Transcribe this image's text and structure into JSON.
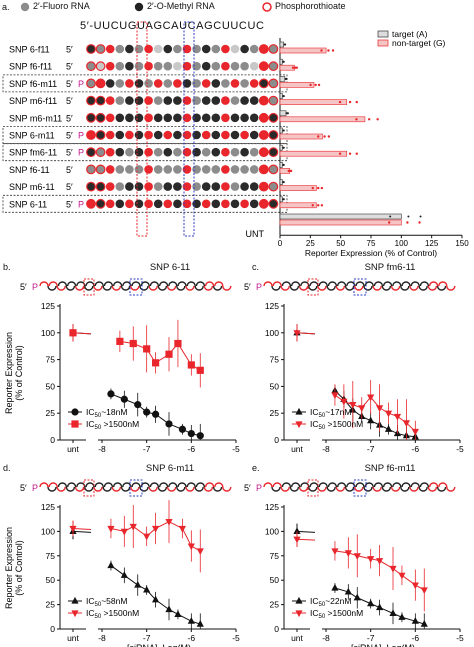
{
  "legend_top": {
    "fluoro": "2′-Fluoro RNA",
    "methyl": "2′-O-Methyl RNA",
    "phosphorothioate": "Phosphorothioate"
  },
  "colors": {
    "red": "#e8262b",
    "pink": "#f5c4c4",
    "dark": "#2a2a2a",
    "gray": "#8c8c8c",
    "blue": "#2e3dbf"
  },
  "panel_a": {
    "letter": "a.",
    "sequence": "5′-UUCUGUAGCAUCAGCUUCUC",
    "rows": [
      {
        "label": "SNP 6-f11",
        "pre": "5′",
        "boxed": false
      },
      {
        "label": "SNP f6-f11",
        "pre": "5′",
        "boxed": false
      },
      {
        "label": "SNP f6-m11",
        "pre": "5′ P",
        "boxed": true
      },
      {
        "label": "SNP m6-f11",
        "pre": "5′",
        "boxed": false
      },
      {
        "label": "SNP m6-m11",
        "pre": "5′",
        "boxed": false
      },
      {
        "label": "SNP 6-m11",
        "pre": "5′ P",
        "boxed": true
      },
      {
        "label": "SNP fm6-11",
        "pre": "5′ P",
        "boxed": true
      },
      {
        "label": "SNP f6-11",
        "pre": "5′",
        "boxed": false
      },
      {
        "label": "SNP m6-11",
        "pre": "5′",
        "boxed": false
      },
      {
        "label": "SNP 6-11",
        "pre": "5′ P",
        "boxed": true
      },
      {
        "label": "UNT",
        "pre": "",
        "boxed": false
      }
    ],
    "chart_data": {
      "type": "bar",
      "orientation": "horizontal",
      "categories": [
        "SNP 6-f11",
        "SNP f6-f11",
        "SNP f6-m11",
        "SNP m6-f11",
        "SNP m6-m11",
        "SNP 6-m11",
        "SNP fm6-11",
        "SNP f6-11",
        "SNP m6-11",
        "SNP 6-11",
        "UNT"
      ],
      "series": [
        {
          "name": "target (A)",
          "values": [
            3,
            2,
            4,
            2,
            5,
            2,
            2,
            2,
            2,
            2,
            100
          ]
        },
        {
          "name": "non-target (G)",
          "values": [
            38,
            12,
            28,
            55,
            70,
            35,
            55,
            8,
            30,
            30,
            100
          ]
        }
      ],
      "xlabel": "Reporter Expression (% of Control)",
      "xticks": [
        "0",
        "25",
        "50",
        "75",
        "100",
        "125",
        "150"
      ],
      "xlim": [
        0,
        150
      ],
      "legend_position": "top-right"
    }
  },
  "panels": [
    {
      "letter": "b.",
      "title": "SNP 6-11",
      "chart_data": {
        "type": "scatter",
        "xlabel": "",
        "ylabel": "Reporter Expression\n(% of Control)",
        "xticks": [
          "-8",
          "-7",
          "-6",
          "-5"
        ],
        "yticks": [
          "0",
          "25",
          "50",
          "75",
          "100",
          "125"
        ],
        "xlim": [
          -8,
          -5
        ],
        "ylim": [
          0,
          125
        ],
        "unt_label": "unt",
        "series": [
          {
            "name": "IC50~18nM",
            "color": "dark",
            "marker": "circle",
            "unt": 100,
            "x": [
              -7.8,
              -7.5,
              -7.2,
              -7.0,
              -6.8,
              -6.5,
              -6.2,
              -6.0,
              -5.8
            ],
            "y": [
              43,
              38,
              33,
              26,
              24,
              15,
              10,
              6,
              4
            ]
          },
          {
            "name": "IC50>1500nM",
            "color": "red",
            "marker": "square",
            "unt": 100,
            "x": [
              -7.6,
              -7.3,
              -7.0,
              -6.8,
              -6.5,
              -6.3,
              -6.0,
              -5.8
            ],
            "y": [
              92,
              90,
              85,
              72,
              80,
              90,
              70,
              65
            ]
          }
        ],
        "legend": [
          {
            "prefix": "IC",
            "sub": "50",
            "suffix": "~18nM"
          },
          {
            "prefix": "IC",
            "sub": "50",
            "suffix": " >1500nM"
          }
        ]
      }
    },
    {
      "letter": "c.",
      "title": "SNP fm6-11",
      "chart_data": {
        "type": "scatter",
        "xlabel": "",
        "ylabel": "",
        "xticks": [
          "-8",
          "-7",
          "-6",
          "-5"
        ],
        "yticks": [
          "0",
          "25",
          "50",
          "75",
          "100",
          "125"
        ],
        "xlim": [
          -8,
          -5
        ],
        "ylim": [
          0,
          125
        ],
        "unt_label": "unt",
        "series": [
          {
            "name": "IC50~17nM",
            "color": "dark",
            "marker": "triangle-up",
            "unt": 100,
            "x": [
              -7.8,
              -7.6,
              -7.4,
              -7.2,
              -7.0,
              -6.8,
              -6.6,
              -6.4,
              -6.2,
              -6.0
            ],
            "y": [
              46,
              38,
              28,
              22,
              18,
              14,
              10,
              6,
              4,
              3
            ]
          },
          {
            "name": "IC50>1500nM",
            "color": "red",
            "marker": "triangle-down",
            "unt": 100,
            "x": [
              -7.8,
              -7.6,
              -7.4,
              -7.2,
              -7.0,
              -6.8,
              -6.6,
              -6.4,
              -6.2,
              -6.0
            ],
            "y": [
              42,
              36,
              33,
              30,
              40,
              30,
              25,
              22,
              16,
              8
            ]
          }
        ],
        "legend": [
          {
            "prefix": "IC",
            "sub": "50",
            "suffix": "~17nM"
          },
          {
            "prefix": "IC",
            "sub": "50",
            "suffix": " >1500nM"
          }
        ]
      }
    },
    {
      "letter": "d.",
      "title": "SNP 6-m11",
      "chart_data": {
        "type": "scatter",
        "xlabel": "[siRNA], Log(M)",
        "ylabel": "Reporter Expression\n(% of Control)",
        "xticks": [
          "-8",
          "-7",
          "-6",
          "-5"
        ],
        "yticks": [
          "0",
          "25",
          "50",
          "75",
          "100",
          "125"
        ],
        "xlim": [
          -8,
          -5
        ],
        "ylim": [
          0,
          125
        ],
        "unt_label": "unt",
        "series": [
          {
            "name": "IC50~58nM",
            "color": "dark",
            "marker": "triangle-up",
            "unt": 100,
            "x": [
              -7.8,
              -7.5,
              -7.2,
              -7.0,
              -6.8,
              -6.5,
              -6.3,
              -6.0,
              -5.8
            ],
            "y": [
              65,
              55,
              45,
              40,
              30,
              20,
              15,
              8,
              5
            ]
          },
          {
            "name": "IC50>1500nM",
            "color": "red",
            "marker": "triangle-down",
            "unt": 103,
            "x": [
              -7.8,
              -7.5,
              -7.3,
              -7.0,
              -6.8,
              -6.5,
              -6.2,
              -6.0,
              -5.8
            ],
            "y": [
              103,
              100,
              105,
              95,
              103,
              110,
              103,
              85,
              80
            ]
          }
        ],
        "legend": [
          {
            "prefix": "IC",
            "sub": "50",
            "suffix": "~58nM"
          },
          {
            "prefix": "IC",
            "sub": "50",
            "suffix": " >1500nM"
          }
        ]
      }
    },
    {
      "letter": "e.",
      "title": "SNP f6-m11",
      "chart_data": {
        "type": "scatter",
        "xlabel": "[siRNA], Log(M)",
        "ylabel": "",
        "xticks": [
          "-8",
          "-7",
          "-6",
          "-5"
        ],
        "yticks": [
          "0",
          "25",
          "50",
          "75",
          "100",
          "125"
        ],
        "xlim": [
          -8,
          -5
        ],
        "ylim": [
          0,
          125
        ],
        "unt_label": "unt",
        "series": [
          {
            "name": "IC50~22nM",
            "color": "dark",
            "marker": "triangle-up",
            "unt": 100,
            "x": [
              -7.8,
              -7.5,
              -7.3,
              -7.0,
              -6.8,
              -6.5,
              -6.3,
              -6.0,
              -5.8
            ],
            "y": [
              42,
              38,
              32,
              26,
              22,
              16,
              12,
              8,
              5
            ]
          },
          {
            "name": "IC50>1500nM",
            "color": "red",
            "marker": "triangle-down",
            "unt": 92,
            "x": [
              -7.8,
              -7.5,
              -7.3,
              -7.0,
              -6.8,
              -6.5,
              -6.3,
              -6.0,
              -5.8
            ],
            "y": [
              80,
              78,
              75,
              72,
              70,
              62,
              55,
              45,
              40
            ]
          }
        ],
        "legend": [
          {
            "prefix": "IC",
            "sub": "50",
            "suffix": "~22nM"
          },
          {
            "prefix": "IC",
            "sub": "50",
            "suffix": " >1500nM"
          }
        ]
      }
    }
  ]
}
